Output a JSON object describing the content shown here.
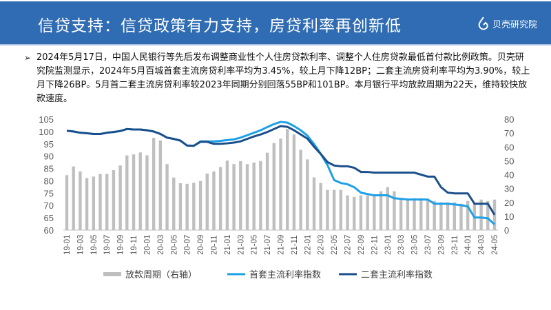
{
  "header": {
    "title": "信贷支持：信贷政策有力支持，房贷利率再创新低",
    "logo_text": "贝壳研究院"
  },
  "paragraph": "2024年5月17日，中国人民银行等先后发布调整商业性个人住房贷款利率、调整个人住房贷款最低首付款比例政策。贝壳研究院监测显示，2024年5月百城首套主流房贷利率平均为3.45%，较上月下降12BP；二套主流房贷利率平均为3.90%，较上月下降26BP。5月首二套主流房贷利率较2023年同期分别回落55BP和101BP。本月银行平均放款周期为22天，维持较快放款速度。",
  "colors": {
    "header": "#2f6cb3",
    "bar": "#bfbfbf",
    "first": "#1ea0e6",
    "second": "#1a4f8a"
  },
  "chart_data": {
    "type": "bar+line",
    "x": [
      "19-01",
      "19-02",
      "19-03",
      "19-04",
      "19-05",
      "19-06",
      "19-07",
      "19-08",
      "19-09",
      "19-10",
      "19-11",
      "19-12",
      "20-01",
      "20-02",
      "20-03",
      "20-04",
      "20-05",
      "20-06",
      "20-07",
      "20-08",
      "20-09",
      "20-10",
      "20-11",
      "20-12",
      "21-01",
      "21-02",
      "21-03",
      "21-04",
      "21-05",
      "21-06",
      "21-07",
      "21-08",
      "21-09",
      "21-10",
      "21-11",
      "21-12",
      "22-01",
      "22-02",
      "22-03",
      "22-04",
      "22-05",
      "22-06",
      "22-07",
      "22-08",
      "22-09",
      "22-10",
      "22-11",
      "22-12",
      "23-01",
      "23-02",
      "23-03",
      "23-04",
      "23-05",
      "23-06",
      "23-07",
      "23-08",
      "23-09",
      "23-10",
      "23-11",
      "23-12",
      "24-01",
      "24-02",
      "24-03",
      "24-04",
      "24-05"
    ],
    "left_ylim": [
      60,
      105
    ],
    "left_ticks": [
      "60",
      "65",
      "70",
      "75",
      "80",
      "85",
      "90",
      "95",
      "100",
      "105"
    ],
    "right_ylim": [
      0,
      80
    ],
    "right_ticks": [
      "0",
      "10",
      "20",
      "30",
      "40",
      "50",
      "60",
      "70",
      "80"
    ],
    "series": [
      {
        "name": "放款周期（右轴）",
        "axis": "right",
        "type": "bar",
        "values": [
          39.6,
          45.9,
          42.3,
          37.5,
          38.6,
          40.5,
          40.5,
          43.2,
          46.6,
          53.9,
          54.6,
          56,
          53.9,
          66.5,
          64.7,
          47.6,
          37.9,
          33.8,
          33.4,
          34.1,
          35.4,
          40.7,
          42.3,
          45.5,
          50.1,
          47.6,
          49.8,
          47.6,
          48.7,
          49.8,
          55.8,
          62.8,
          66,
          73,
          69,
          58,
          51,
          38,
          34,
          29,
          29,
          29,
          25,
          24,
          25,
          25,
          25,
          28,
          31,
          28,
          23,
          22,
          23,
          23,
          22,
          21,
          20,
          20,
          20,
          19,
          21,
          19,
          22,
          21,
          22
        ]
      },
      {
        "name": "首套主流利率指数",
        "axis": "left",
        "type": "line",
        "values": [
          100.3,
          100,
          99.5,
          99.3,
          99,
          99,
          99.5,
          99.8,
          100.2,
          101,
          100.8,
          100.8,
          100.5,
          100,
          99,
          97.5,
          97,
          96.3,
          94.3,
          94.2,
          96,
          96,
          96,
          96.2,
          96.5,
          96.8,
          97.5,
          98.5,
          99.5,
          100.5,
          101.8,
          103,
          103.9,
          103.6,
          102.2,
          100.5,
          98.3,
          94.9,
          90.9,
          86.4,
          80.3,
          79.1,
          78.6,
          77.4,
          75.2,
          74.6,
          74.1,
          74.1,
          74.1,
          72.9,
          72.7,
          72.4,
          72.4,
          72.4,
          72.4,
          70.7,
          70.7,
          70.7,
          70.4,
          70.1,
          69.6,
          65.1,
          65.1,
          64.8,
          62.3
        ]
      },
      {
        "name": "二套主流利率指数",
        "axis": "left",
        "type": "line",
        "values": [
          100.3,
          100,
          99.5,
          99.3,
          99,
          99,
          99.5,
          99.8,
          100.2,
          101,
          100.8,
          100.8,
          100.5,
          100,
          99,
          97.5,
          97,
          96.3,
          94.3,
          94.2,
          95.8,
          95.8,
          95,
          95,
          95.2,
          95.5,
          96,
          97,
          98,
          98.8,
          99.8,
          101,
          102.2,
          101.9,
          100.5,
          98.8,
          97.1,
          93.8,
          90.9,
          87.6,
          86.2,
          85.9,
          85.9,
          85.3,
          83.6,
          83.6,
          83.3,
          83.3,
          83.3,
          83.3,
          83.3,
          83.3,
          83.3,
          82.5,
          81.7,
          81.7,
          77.4,
          75.2,
          74.9,
          74.9,
          74.9,
          70.7,
          70.7,
          70.7,
          66.2
        ]
      }
    ],
    "legend": [
      "放款周期（右轴）",
      "首套主流利率指数",
      "二套主流利率指数"
    ],
    "legend_position": "bottom"
  }
}
